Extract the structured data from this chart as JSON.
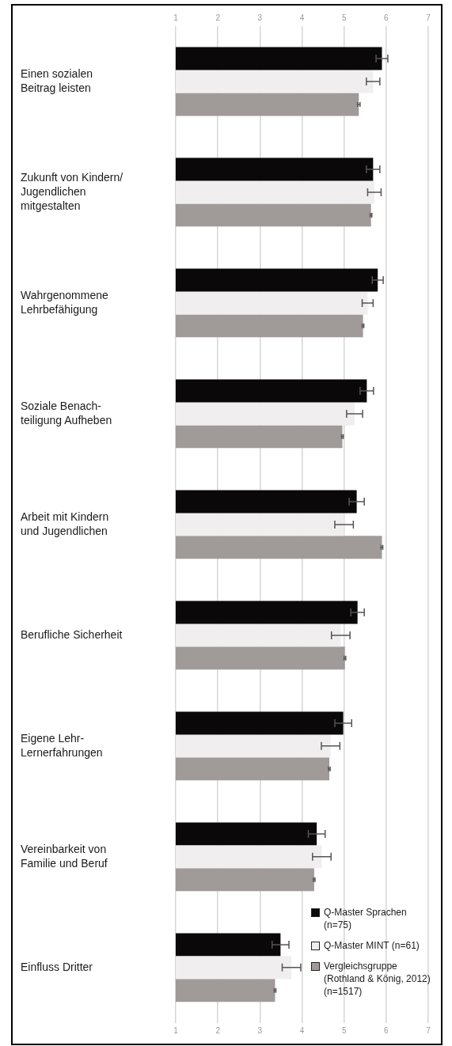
{
  "chart_data": {
    "type": "bar",
    "orientation": "horizontal",
    "categories": [
      "Einen sozialen\nBeitrag leisten",
      "Zukunft von Kindern/\nJugendlichen\nmitgestalten",
      "Wahrgenommene\nLehrbefähigung",
      "Soziale Benach-\nteiligung Aufheben",
      "Arbeit mit Kindern\nund Jugendlichen",
      "Berufliche Sicherheit",
      "Eigene Lehr-\nLernerfahrungen",
      "Vereinbarkeit von\nFamilie und Beruf",
      "Einfluss Dritter"
    ],
    "series": [
      {
        "name": "Q-Master Sprachen\n(n=75)",
        "color": "#0a0808",
        "values": [
          5.9,
          5.69,
          5.8,
          5.54,
          5.3,
          5.32,
          4.98,
          4.35,
          3.49
        ],
        "errors": [
          0.14,
          0.16,
          0.13,
          0.16,
          0.18,
          0.16,
          0.2,
          0.2,
          0.2
        ]
      },
      {
        "name": "Q-Master MINT (n=61)",
        "color": "#f0eeee",
        "values": [
          5.69,
          5.72,
          5.56,
          5.25,
          5.0,
          4.92,
          4.68,
          4.47,
          3.75
        ],
        "errors": [
          0.16,
          0.16,
          0.13,
          0.19,
          0.22,
          0.22,
          0.22,
          0.22,
          0.22
        ]
      },
      {
        "name": "Vergleichsgruppe\n(Rothland & König, 2012)\n(n=1517)",
        "color": "#a09a98",
        "values": [
          5.35,
          5.64,
          5.45,
          4.96,
          5.9,
          5.02,
          4.65,
          4.29,
          3.36
        ],
        "errors": [
          0.03,
          0.02,
          0.02,
          0.02,
          0.02,
          0.02,
          0.02,
          0.02,
          0.02
        ]
      }
    ],
    "xlim": [
      1,
      7
    ],
    "xticks": [
      1,
      2,
      3,
      4,
      5,
      6,
      7
    ],
    "x2lim": [
      1,
      7
    ],
    "x2ticks": [
      1,
      2,
      3,
      4,
      5,
      6,
      7
    ],
    "grid": "x",
    "legend": "bottom right"
  }
}
